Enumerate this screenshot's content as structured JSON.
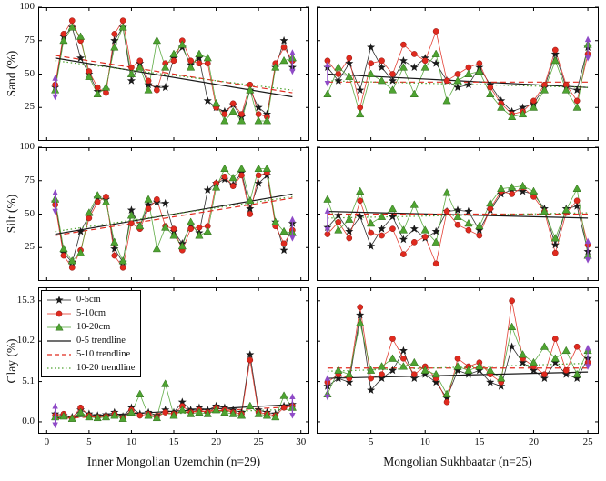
{
  "figure": {
    "row_labels": [
      "Sand (%)",
      "Silt (%)",
      "Clay (%)"
    ],
    "col_captions": [
      "Inner Mongolian Uzemchin (n=29)",
      "Mongolian Sukhbaatar (n=25)"
    ]
  },
  "legend": {
    "entries": [
      {
        "label": "0-5cm",
        "type": "marker",
        "marker": "star",
        "color": "#1a1a1a"
      },
      {
        "label": "5-10cm",
        "type": "marker",
        "marker": "circle",
        "color": "#e02a1e"
      },
      {
        "label": "10-20cm",
        "type": "marker",
        "marker": "triangle",
        "color": "#4ea331"
      },
      {
        "label": "0-5 trendline",
        "type": "line",
        "dash": "solid",
        "color": "#1a1a1a"
      },
      {
        "label": "5-10 trendline",
        "type": "line",
        "dash": "dashed",
        "color": "#e02a1e"
      },
      {
        "label": "10-20 trendline",
        "type": "line",
        "dash": "dotted",
        "color": "#4ea331"
      }
    ]
  },
  "chart_data": {
    "type": "line",
    "series_meta": [
      {
        "name": "0-5cm",
        "color": "#1a1a1a",
        "marker": "star"
      },
      {
        "name": "5-10cm",
        "color": "#e02a1e",
        "marker": "circle"
      },
      {
        "name": "10-20cm",
        "color": "#4ea331",
        "marker": "triangle"
      }
    ],
    "trend_meta": [
      {
        "name": "0-5 trendline",
        "color": "#1a1a1a",
        "dash": "solid"
      },
      {
        "name": "5-10 trendline",
        "color": "#e02a1e",
        "dash": "dashed"
      },
      {
        "name": "10-20 trendline",
        "color": "#4ea331",
        "dash": "dotted"
      }
    ],
    "edge_arrow_color": "#8f4bc7",
    "panels": [
      {
        "id": "sand-uzemchin",
        "row": 0,
        "col": 0,
        "n": 29,
        "xlim": [
          -1,
          31
        ],
        "ylim": [
          0,
          100
        ],
        "xticks": [
          0,
          5,
          10,
          15,
          20,
          25,
          30
        ],
        "yticks": [
          25,
          50,
          75,
          100
        ],
        "yticklabels": [
          "25",
          "50",
          "75",
          "100"
        ],
        "series": [
          [
            40,
            78,
            85,
            62,
            50,
            37,
            38,
            75,
            85,
            45,
            58,
            42,
            40,
            40,
            62,
            70,
            57,
            62,
            30,
            25,
            22,
            27,
            18,
            38,
            25,
            20,
            55,
            75,
            55
          ],
          [
            42,
            80,
            90,
            75,
            52,
            40,
            36,
            80,
            90,
            55,
            60,
            45,
            38,
            58,
            60,
            75,
            60,
            58,
            58,
            25,
            20,
            28,
            20,
            42,
            20,
            18,
            58,
            70,
            60
          ],
          [
            38,
            75,
            85,
            78,
            48,
            35,
            40,
            70,
            85,
            50,
            55,
            38,
            75,
            55,
            65,
            72,
            55,
            65,
            62,
            28,
            15,
            22,
            15,
            38,
            15,
            15,
            55,
            60,
            62
          ]
        ],
        "trend": [
          [
            62,
            33
          ],
          [
            64,
            36
          ],
          [
            60,
            38
          ]
        ]
      },
      {
        "id": "sand-sukhbaatar",
        "row": 0,
        "col": 1,
        "n": 25,
        "xlim": [
          0,
          26
        ],
        "ylim": [
          0,
          100
        ],
        "xticks": [
          5,
          10,
          15,
          20,
          25
        ],
        "yticks": [
          25,
          50,
          75,
          100
        ],
        "series": [
          [
            55,
            45,
            58,
            38,
            70,
            55,
            45,
            60,
            55,
            62,
            58,
            45,
            40,
            42,
            55,
            42,
            30,
            22,
            25,
            28,
            40,
            65,
            40,
            38,
            70
          ],
          [
            60,
            50,
            62,
            25,
            58,
            60,
            50,
            72,
            65,
            60,
            82,
            45,
            50,
            55,
            58,
            40,
            28,
            20,
            22,
            30,
            42,
            68,
            42,
            30,
            65
          ],
          [
            35,
            55,
            48,
            20,
            50,
            45,
            38,
            55,
            35,
            55,
            65,
            30,
            45,
            50,
            52,
            35,
            25,
            18,
            20,
            25,
            38,
            60,
            38,
            25,
            72
          ]
        ],
        "trend": [
          [
            50,
            40
          ],
          [
            44,
            44
          ],
          [
            45,
            40
          ]
        ]
      },
      {
        "id": "silt-uzemchin",
        "row": 1,
        "col": 0,
        "n": 29,
        "xlim": [
          -1,
          31
        ],
        "ylim": [
          0,
          100
        ],
        "xticks": [
          0,
          5,
          10,
          15,
          20,
          25,
          30
        ],
        "yticks": [
          25,
          50,
          75,
          100
        ],
        "yticklabels": [
          "25",
          "50",
          "75",
          "100"
        ],
        "series": [
          [
            59,
            21,
            14,
            37,
            49,
            62,
            61,
            24,
            14,
            53,
            41,
            57,
            59,
            58,
            37,
            28,
            42,
            36,
            68,
            73,
            76,
            72,
            81,
            54,
            73,
            79,
            44,
            23,
            43
          ],
          [
            57,
            19,
            10,
            23,
            47,
            59,
            63,
            19,
            10,
            43,
            39,
            54,
            61,
            41,
            39,
            23,
            39,
            40,
            41,
            73,
            78,
            71,
            79,
            50,
            79,
            81,
            41,
            28,
            38
          ],
          [
            61,
            24,
            15,
            21,
            51,
            64,
            59,
            29,
            15,
            49,
            41,
            61,
            24,
            40,
            34,
            26,
            44,
            34,
            37,
            70,
            84,
            77,
            84,
            60,
            84,
            84,
            44,
            37,
            36
          ]
        ],
        "trend": [
          [
            35,
            65
          ],
          [
            34,
            62
          ],
          [
            37,
            63
          ]
        ]
      },
      {
        "id": "silt-sukhbaatar",
        "row": 1,
        "col": 1,
        "n": 25,
        "xlim": [
          0,
          26
        ],
        "ylim": [
          0,
          100
        ],
        "xticks": [
          5,
          10,
          15,
          20,
          25
        ],
        "yticks": [
          25,
          50,
          75,
          100
        ],
        "series": [
          [
            40,
            49,
            37,
            48,
            26,
            39,
            48,
            31,
            39,
            32,
            37,
            52,
            53,
            52,
            38,
            53,
            65,
            68,
            67,
            65,
            54,
            27,
            54,
            56,
            22
          ],
          [
            35,
            44,
            32,
            60,
            36,
            34,
            39,
            20,
            29,
            33,
            13,
            52,
            42,
            38,
            34,
            54,
            67,
            65,
            70,
            63,
            52,
            21,
            51,
            60,
            27
          ],
          [
            61,
            38,
            46,
            67,
            43,
            48,
            54,
            38,
            57,
            38,
            29,
            66,
            48,
            43,
            41,
            58,
            69,
            70,
            71,
            67,
            52,
            32,
            53,
            69,
            19
          ]
        ],
        "trend": [
          [
            52,
            47
          ],
          [
            50,
            50
          ],
          [
            47,
            51
          ]
        ]
      },
      {
        "id": "clay-uzemchin",
        "row": 2,
        "col": 0,
        "n": 29,
        "xlim": [
          -1,
          31
        ],
        "ylim": [
          -1.5,
          17
        ],
        "xticks": [
          0,
          5,
          10,
          15,
          20,
          25,
          30
        ],
        "xticklabels": [
          "0",
          "5",
          "10",
          "15",
          "20",
          "25",
          "30"
        ],
        "yticks": [
          0.0,
          5.1,
          10.2,
          15.3
        ],
        "yticklabels": [
          "0.0",
          "5.1",
          "10.2",
          "15.3"
        ],
        "series": [
          [
            1.0,
            0.8,
            0.6,
            1.5,
            1.0,
            0.8,
            0.9,
            1.2,
            0.7,
            1.8,
            1.0,
            1.2,
            0.8,
            1.5,
            1.2,
            2.5,
            1.5,
            1.8,
            1.5,
            2.0,
            1.8,
            1.5,
            1.2,
            8.5,
            1.5,
            1.2,
            1.0,
            2.0,
            2.2
          ],
          [
            0.8,
            1.0,
            0.5,
            1.8,
            0.8,
            0.6,
            0.7,
            1.0,
            0.5,
            1.5,
            0.8,
            1.0,
            0.6,
            1.2,
            1.0,
            2.0,
            1.2,
            1.5,
            1.2,
            1.8,
            1.5,
            1.2,
            1.0,
            7.8,
            1.2,
            1.0,
            0.8,
            1.8,
            2.0
          ],
          [
            0.6,
            0.7,
            0.4,
            1.2,
            0.6,
            0.5,
            0.6,
            0.8,
            0.4,
            1.2,
            3.5,
            0.8,
            0.5,
            4.8,
            0.8,
            1.5,
            1.0,
            1.2,
            1.0,
            1.5,
            1.2,
            1.0,
            0.8,
            2.0,
            1.0,
            0.8,
            0.6,
            3.3,
            1.8
          ]
        ],
        "trend": [
          [
            0.5,
            2.2
          ],
          [
            0.4,
            1.9
          ],
          [
            0.5,
            1.6
          ]
        ]
      },
      {
        "id": "clay-sukhbaatar",
        "row": 2,
        "col": 1,
        "n": 25,
        "xlim": [
          0,
          26
        ],
        "ylim": [
          -1.5,
          17
        ],
        "xticks": [
          5,
          10,
          15,
          20,
          25
        ],
        "xticklabels": [
          "5",
          "10",
          "15",
          "20",
          "25"
        ],
        "yticks": [
          0.0,
          5.1,
          10.2,
          15.3
        ],
        "series": [
          [
            4.5,
            5.5,
            5.0,
            13.5,
            4.0,
            5.5,
            6.5,
            9.0,
            5.5,
            6.0,
            5.0,
            3.0,
            6.5,
            6.0,
            6.5,
            5.0,
            4.5,
            9.5,
            7.5,
            6.5,
            5.5,
            7.5,
            6.0,
            5.5,
            8.0
          ],
          [
            5.0,
            6.0,
            5.5,
            14.5,
            5.5,
            6.0,
            10.5,
            8.0,
            6.0,
            7.0,
            5.5,
            2.5,
            8.0,
            7.0,
            7.5,
            6.0,
            5.0,
            15.3,
            8.0,
            7.0,
            6.0,
            10.5,
            6.5,
            9.5,
            7.5
          ],
          [
            3.5,
            6.5,
            6.0,
            12.5,
            6.5,
            7.0,
            8.0,
            7.0,
            7.5,
            6.5,
            6.0,
            3.5,
            7.0,
            6.5,
            7.0,
            6.5,
            5.5,
            12.0,
            8.5,
            7.5,
            9.5,
            8.0,
            9.0,
            6.0,
            9.0
          ]
        ],
        "trend": [
          [
            5.5,
            6.3
          ],
          [
            6.8,
            6.8
          ],
          [
            6.4,
            7.4
          ]
        ]
      }
    ]
  }
}
